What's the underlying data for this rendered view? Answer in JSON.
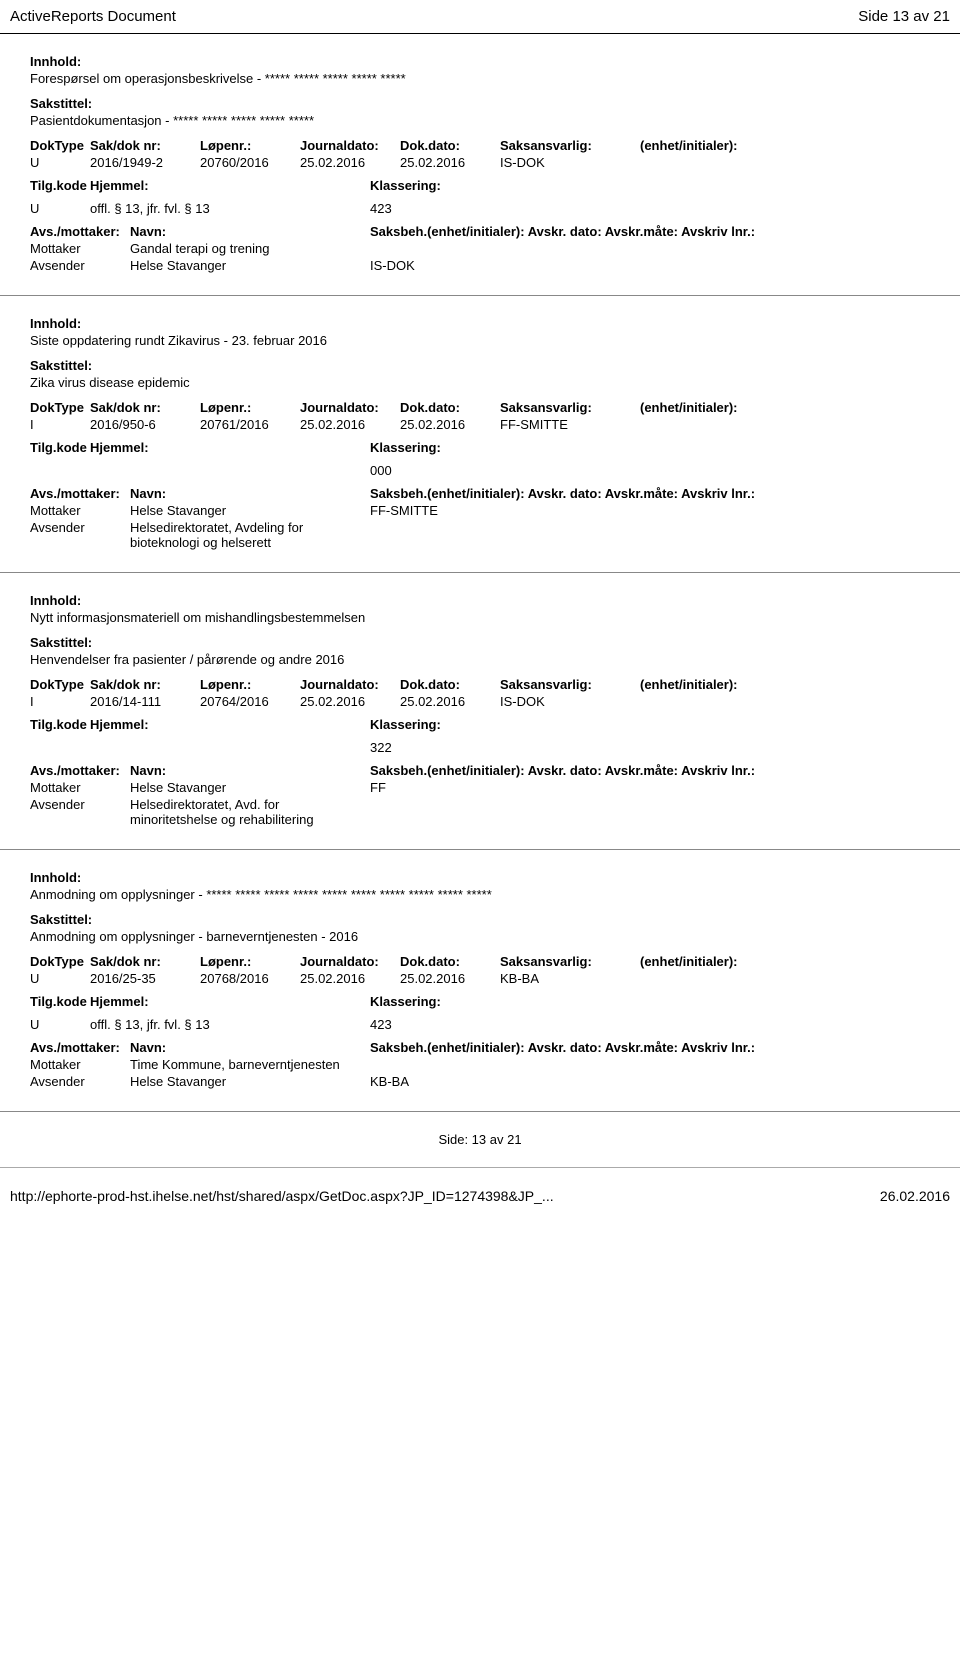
{
  "header": {
    "title": "ActiveReports Document",
    "page_info": "Side 13 av 21"
  },
  "entries": [
    {
      "innhold_label": "Innhold:",
      "innhold": "Forespørsel om operasjonsbeskrivelse - ***** ***** ***** ***** *****",
      "sakstittel_label": "Sakstittel:",
      "sakstittel": "Pasientdokumentasjon - ***** ***** ***** ***** *****",
      "headers": {
        "doktype": "DokType",
        "sak": "Sak/dok nr:",
        "lopenr": "Løpenr.:",
        "journal": "Journaldato:",
        "dokdato": "Dok.dato:",
        "saksans": "Saksansvarlig:",
        "enhet": "(enhet/initialer):"
      },
      "values": {
        "doktype": "U",
        "sak": "2016/1949-2",
        "lopenr": "20760/2016",
        "journal": "25.02.2016",
        "dokdato": "25.02.2016",
        "saksans": "IS-DOK",
        "enhet": ""
      },
      "hjemmel_headers": {
        "tilg": "Tilg.kode",
        "hjemmel": "Hjemmel:",
        "klass": "Klassering:"
      },
      "hjemmel_values": {
        "tilg": "U",
        "hjemmel": "offl. § 13, jfr. fvl. § 13",
        "klass": "423"
      },
      "avs_headers": {
        "role": "Avs./mottaker:",
        "name": "Navn:",
        "saksbeh": "Saksbeh.(enhet/initialer): Avskr. dato: Avskr.måte: Avskriv lnr.:"
      },
      "avs_rows": [
        {
          "role": "Mottaker",
          "name": "Gandal terapi og trening",
          "saksbeh": ""
        },
        {
          "role": "Avsender",
          "name": "Helse Stavanger",
          "saksbeh": "IS-DOK"
        }
      ]
    },
    {
      "innhold_label": "Innhold:",
      "innhold": "Siste oppdatering rundt Zikavirus - 23. februar 2016",
      "sakstittel_label": "Sakstittel:",
      "sakstittel": "Zika virus disease epidemic",
      "headers": {
        "doktype": "DokType",
        "sak": "Sak/dok nr:",
        "lopenr": "Løpenr.:",
        "journal": "Journaldato:",
        "dokdato": "Dok.dato:",
        "saksans": "Saksansvarlig:",
        "enhet": "(enhet/initialer):"
      },
      "values": {
        "doktype": "I",
        "sak": "2016/950-6",
        "lopenr": "20761/2016",
        "journal": "25.02.2016",
        "dokdato": "25.02.2016",
        "saksans": "FF-SMITTE",
        "enhet": ""
      },
      "hjemmel_headers": {
        "tilg": "Tilg.kode",
        "hjemmel": "Hjemmel:",
        "klass": "Klassering:"
      },
      "hjemmel_values": {
        "tilg": "",
        "hjemmel": "",
        "klass": "000"
      },
      "avs_headers": {
        "role": "Avs./mottaker:",
        "name": "Navn:",
        "saksbeh": "Saksbeh.(enhet/initialer): Avskr. dato: Avskr.måte: Avskriv lnr.:"
      },
      "avs_rows": [
        {
          "role": "Mottaker",
          "name": "Helse Stavanger",
          "saksbeh": "FF-SMITTE"
        },
        {
          "role": "Avsender",
          "name": "Helsedirektoratet, Avdeling for bioteknologi og helserett",
          "saksbeh": ""
        }
      ]
    },
    {
      "innhold_label": "Innhold:",
      "innhold": "Nytt informasjonsmateriell om mishandlingsbestemmelsen",
      "sakstittel_label": "Sakstittel:",
      "sakstittel": "Henvendelser fra pasienter / pårørende og andre 2016",
      "headers": {
        "doktype": "DokType",
        "sak": "Sak/dok nr:",
        "lopenr": "Løpenr.:",
        "journal": "Journaldato:",
        "dokdato": "Dok.dato:",
        "saksans": "Saksansvarlig:",
        "enhet": "(enhet/initialer):"
      },
      "values": {
        "doktype": "I",
        "sak": "2016/14-111",
        "lopenr": "20764/2016",
        "journal": "25.02.2016",
        "dokdato": "25.02.2016",
        "saksans": "IS-DOK",
        "enhet": ""
      },
      "hjemmel_headers": {
        "tilg": "Tilg.kode",
        "hjemmel": "Hjemmel:",
        "klass": "Klassering:"
      },
      "hjemmel_values": {
        "tilg": "",
        "hjemmel": "",
        "klass": "322"
      },
      "avs_headers": {
        "role": "Avs./mottaker:",
        "name": "Navn:",
        "saksbeh": "Saksbeh.(enhet/initialer): Avskr. dato: Avskr.måte: Avskriv lnr.:"
      },
      "avs_rows": [
        {
          "role": "Mottaker",
          "name": "Helse Stavanger",
          "saksbeh": "FF"
        },
        {
          "role": "Avsender",
          "name": "Helsedirektoratet, Avd. for minoritetshelse og rehabilitering",
          "saksbeh": ""
        }
      ]
    },
    {
      "innhold_label": "Innhold:",
      "innhold": "Anmodning om opplysninger - ***** ***** ***** ***** ***** ***** ***** ***** ***** *****",
      "sakstittel_label": "Sakstittel:",
      "sakstittel": "Anmodning om opplysninger - barneverntjenesten - 2016",
      "headers": {
        "doktype": "DokType",
        "sak": "Sak/dok nr:",
        "lopenr": "Løpenr.:",
        "journal": "Journaldato:",
        "dokdato": "Dok.dato:",
        "saksans": "Saksansvarlig:",
        "enhet": "(enhet/initialer):"
      },
      "values": {
        "doktype": "U",
        "sak": "2016/25-35",
        "lopenr": "20768/2016",
        "journal": "25.02.2016",
        "dokdato": "25.02.2016",
        "saksans": "KB-BA",
        "enhet": ""
      },
      "hjemmel_headers": {
        "tilg": "Tilg.kode",
        "hjemmel": "Hjemmel:",
        "klass": "Klassering:"
      },
      "hjemmel_values": {
        "tilg": "U",
        "hjemmel": "offl. § 13, jfr. fvl. § 13",
        "klass": "423"
      },
      "avs_headers": {
        "role": "Avs./mottaker:",
        "name": "Navn:",
        "saksbeh": "Saksbeh.(enhet/initialer): Avskr. dato: Avskr.måte: Avskriv lnr.:"
      },
      "avs_rows": [
        {
          "role": "Mottaker",
          "name": "Time Kommune, barneverntjenesten",
          "saksbeh": ""
        },
        {
          "role": "Avsender",
          "name": "Helse Stavanger",
          "saksbeh": "KB-BA"
        }
      ]
    }
  ],
  "page_footer": "Side: 13 av  21",
  "bottom": {
    "url": "http://ephorte-prod-hst.ihelse.net/hst/shared/aspx/GetDoc.aspx?JP_ID=1274398&JP_...",
    "date": "26.02.2016"
  }
}
